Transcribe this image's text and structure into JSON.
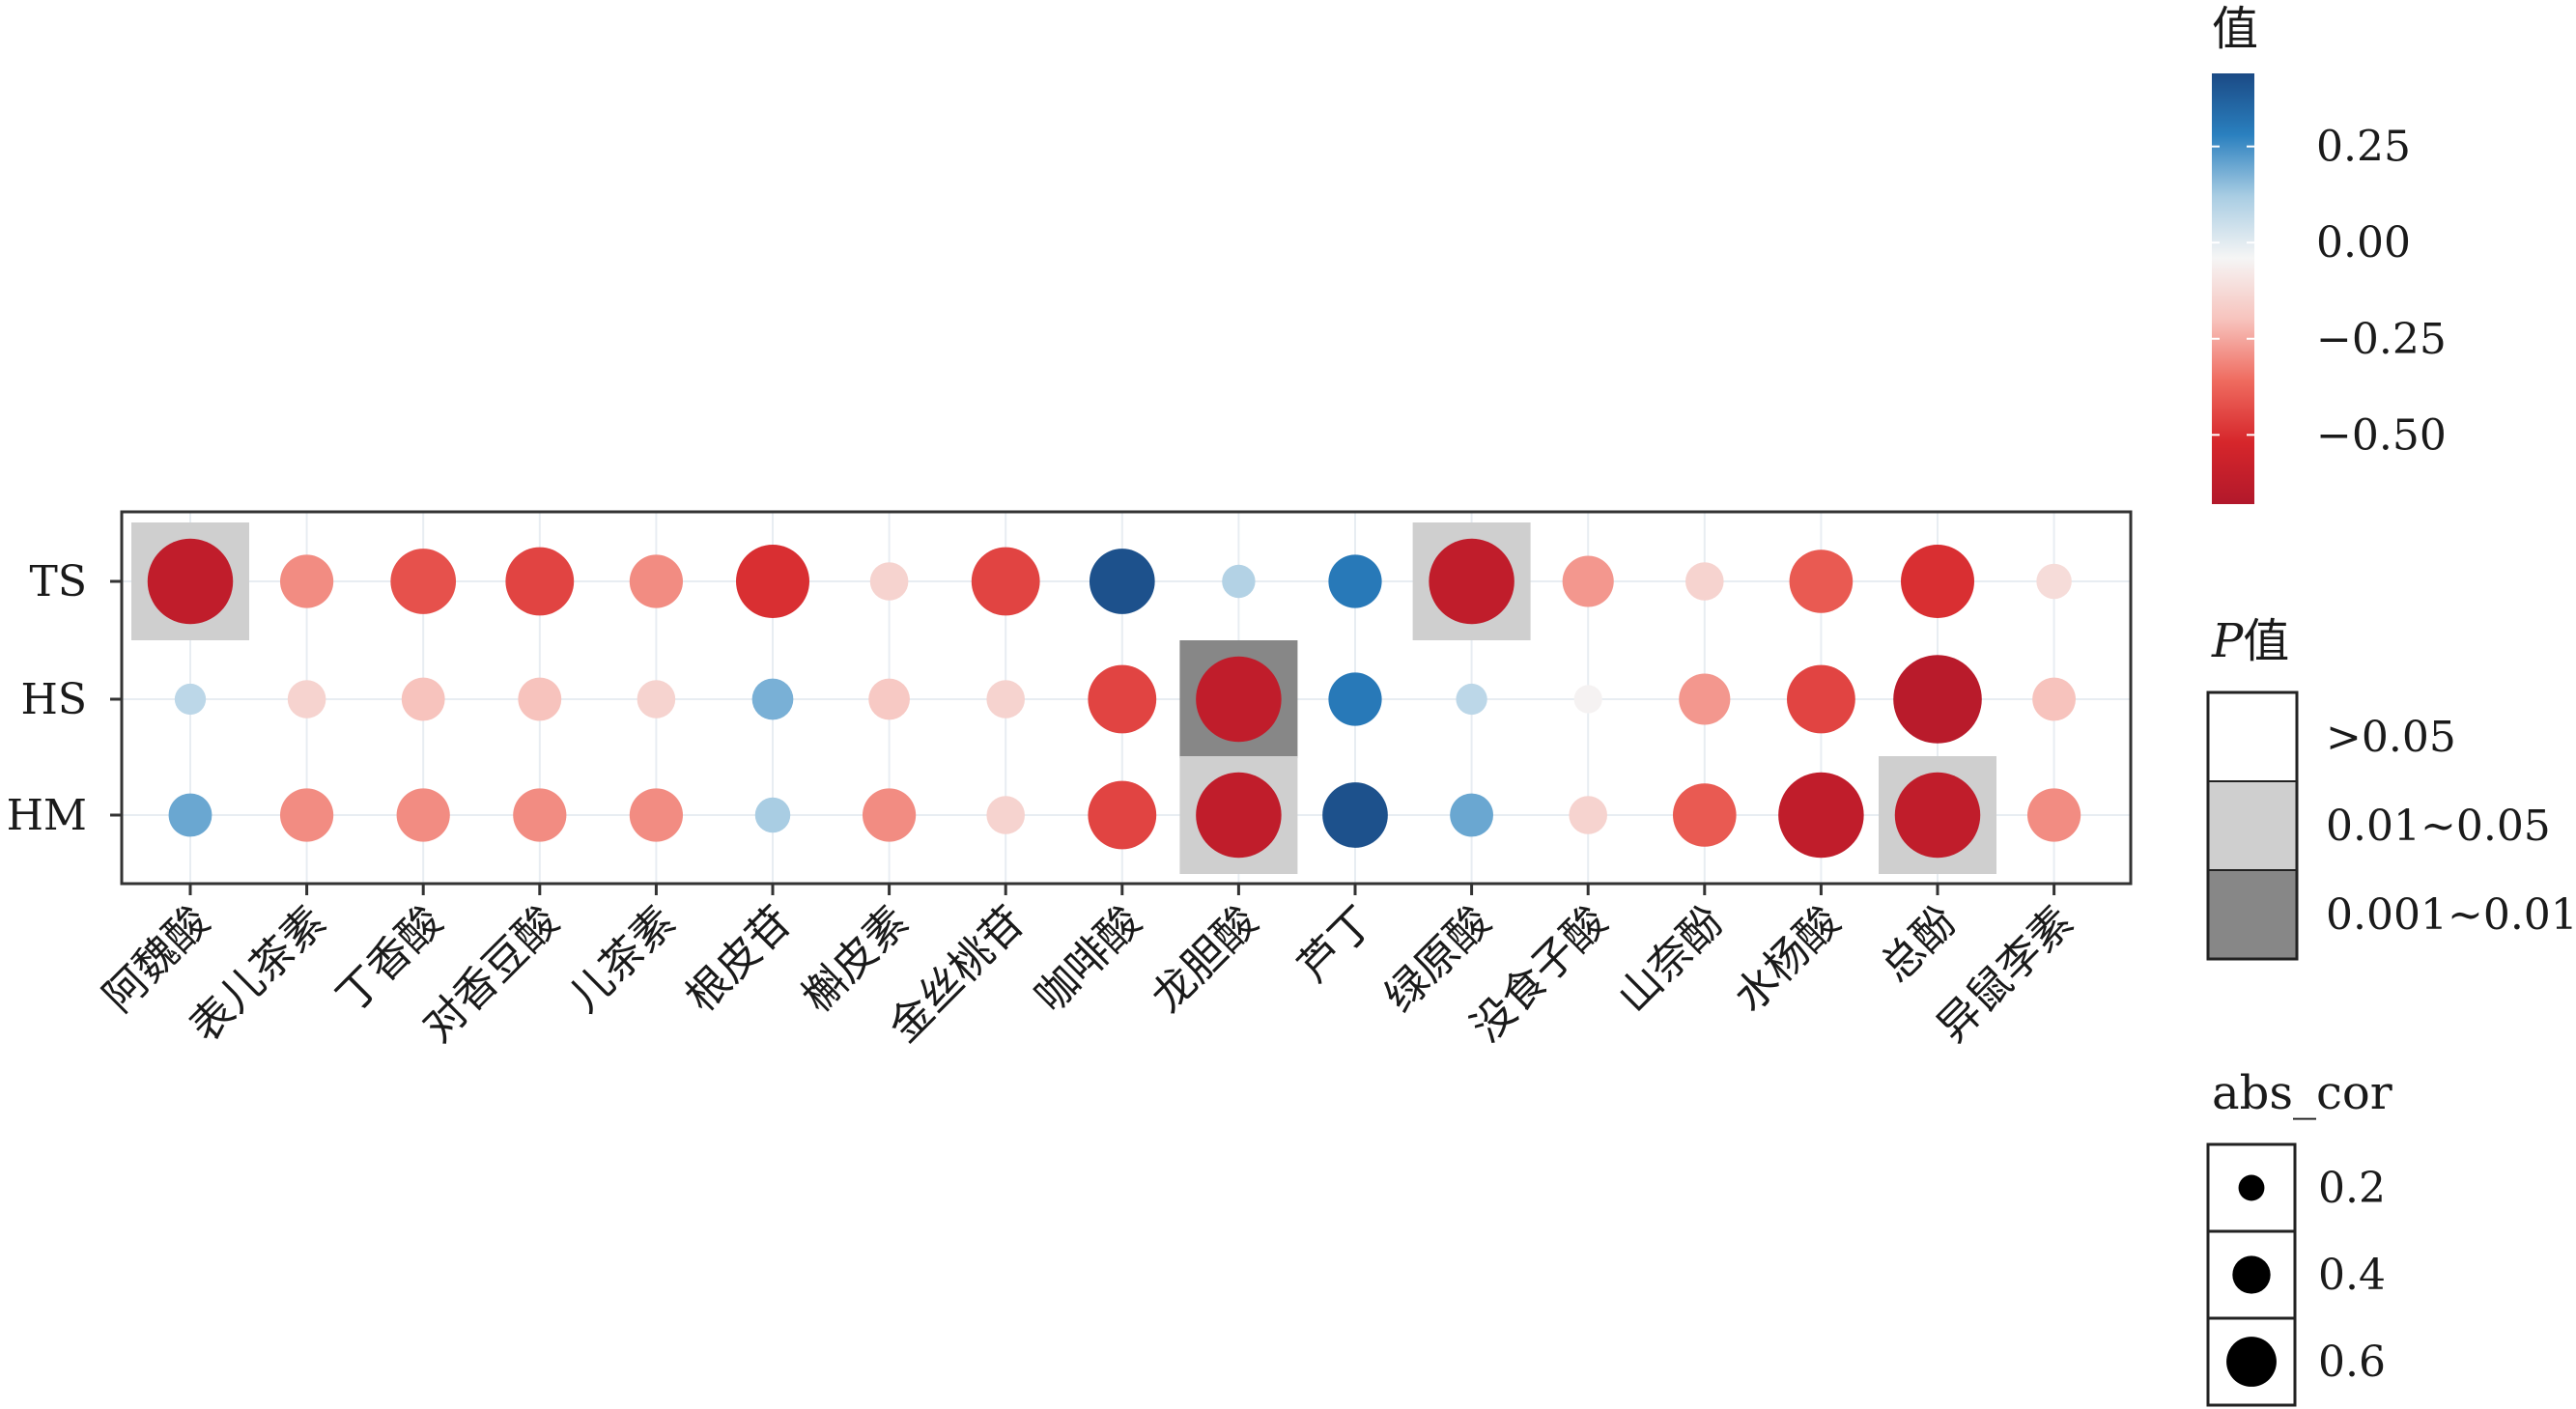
{
  "chart_data": {
    "type": "heatmap",
    "rows": [
      "TS",
      "HS",
      "HM"
    ],
    "columns": [
      "阿魏酸",
      "表儿茶素",
      "丁香酸",
      "对香豆酸",
      "儿茶素",
      "根皮苷",
      "槲皮素",
      "金丝桃苷",
      "咖啡酸",
      "龙胆酸",
      "芦丁",
      "绿原酸",
      "没食子酸",
      "山奈酚",
      "水杨酸",
      "总酚",
      "异鼠李素"
    ],
    "values": [
      [
        -0.62,
        -0.3,
        -0.42,
        -0.45,
        -0.3,
        -0.5,
        -0.15,
        -0.45,
        0.42,
        0.1,
        0.3,
        -0.62,
        -0.28,
        -0.15,
        -0.4,
        -0.5,
        -0.12
      ],
      [
        0.08,
        -0.15,
        -0.2,
        -0.2,
        -0.15,
        0.18,
        -0.18,
        -0.15,
        -0.45,
        -0.62,
        0.3,
        0.08,
        -0.05,
        -0.28,
        -0.45,
        -0.65,
        -0.2
      ],
      [
        0.2,
        -0.3,
        -0.3,
        -0.3,
        -0.3,
        0.12,
        -0.3,
        -0.15,
        -0.45,
        -0.62,
        0.42,
        0.2,
        -0.15,
        -0.4,
        -0.62,
        -0.62,
        -0.3
      ]
    ],
    "p_category": [
      [
        ">0.05|0.01~0.05",
        "",
        "",
        "",
        "",
        "",
        "",
        "",
        "",
        "",
        "",
        ">0.05|0.01~0.05",
        "",
        "",
        "",
        "",
        ""
      ],
      [
        "",
        "",
        "",
        "",
        "",
        "",
        "",
        "",
        "",
        "0.001~0.01",
        "",
        "",
        "",
        "",
        "",
        "",
        ""
      ],
      [
        "",
        "",
        "",
        "",
        "",
        "",
        "",
        "",
        "",
        "0.01~0.05",
        "",
        "",
        "",
        "",
        "",
        "0.01~0.05",
        ""
      ]
    ],
    "p_highlight": [
      [
        1,
        0,
        0,
        0,
        0,
        0,
        0,
        0,
        0,
        0,
        0,
        1,
        0,
        0,
        0,
        0,
        0
      ],
      [
        0,
        0,
        0,
        0,
        0,
        0,
        0,
        0,
        0,
        2,
        0,
        0,
        0,
        0,
        0,
        0,
        0
      ],
      [
        0,
        0,
        0,
        0,
        0,
        0,
        0,
        0,
        0,
        1,
        0,
        0,
        0,
        0,
        0,
        1,
        0
      ]
    ],
    "color_legend": {
      "title": "值",
      "ticks": [
        "0.25",
        "0.00",
        "−0.25",
        "−0.50"
      ],
      "tick_values": [
        0.25,
        0.0,
        -0.25,
        -0.5
      ],
      "range": [
        -0.68,
        0.44
      ],
      "colors": [
        "#b2182b",
        "#d6262b",
        "#ef6b5f",
        "#f7c3bd",
        "#f5f5f5",
        "#a9cde3",
        "#2a80bf",
        "#1b4a85"
      ]
    },
    "p_legend": {
      "title_italic": "P",
      "title_rest": "值",
      "labels": [
        ">0.05",
        "0.01~0.05",
        "0.001~0.01"
      ],
      "colors": [
        "#ffffff",
        "#cfcfcf",
        "#878787"
      ]
    },
    "size_legend": {
      "title": "abs_cor",
      "labels": [
        "0.2",
        "0.4",
        "0.6"
      ],
      "values": [
        0.2,
        0.4,
        0.6
      ]
    }
  }
}
